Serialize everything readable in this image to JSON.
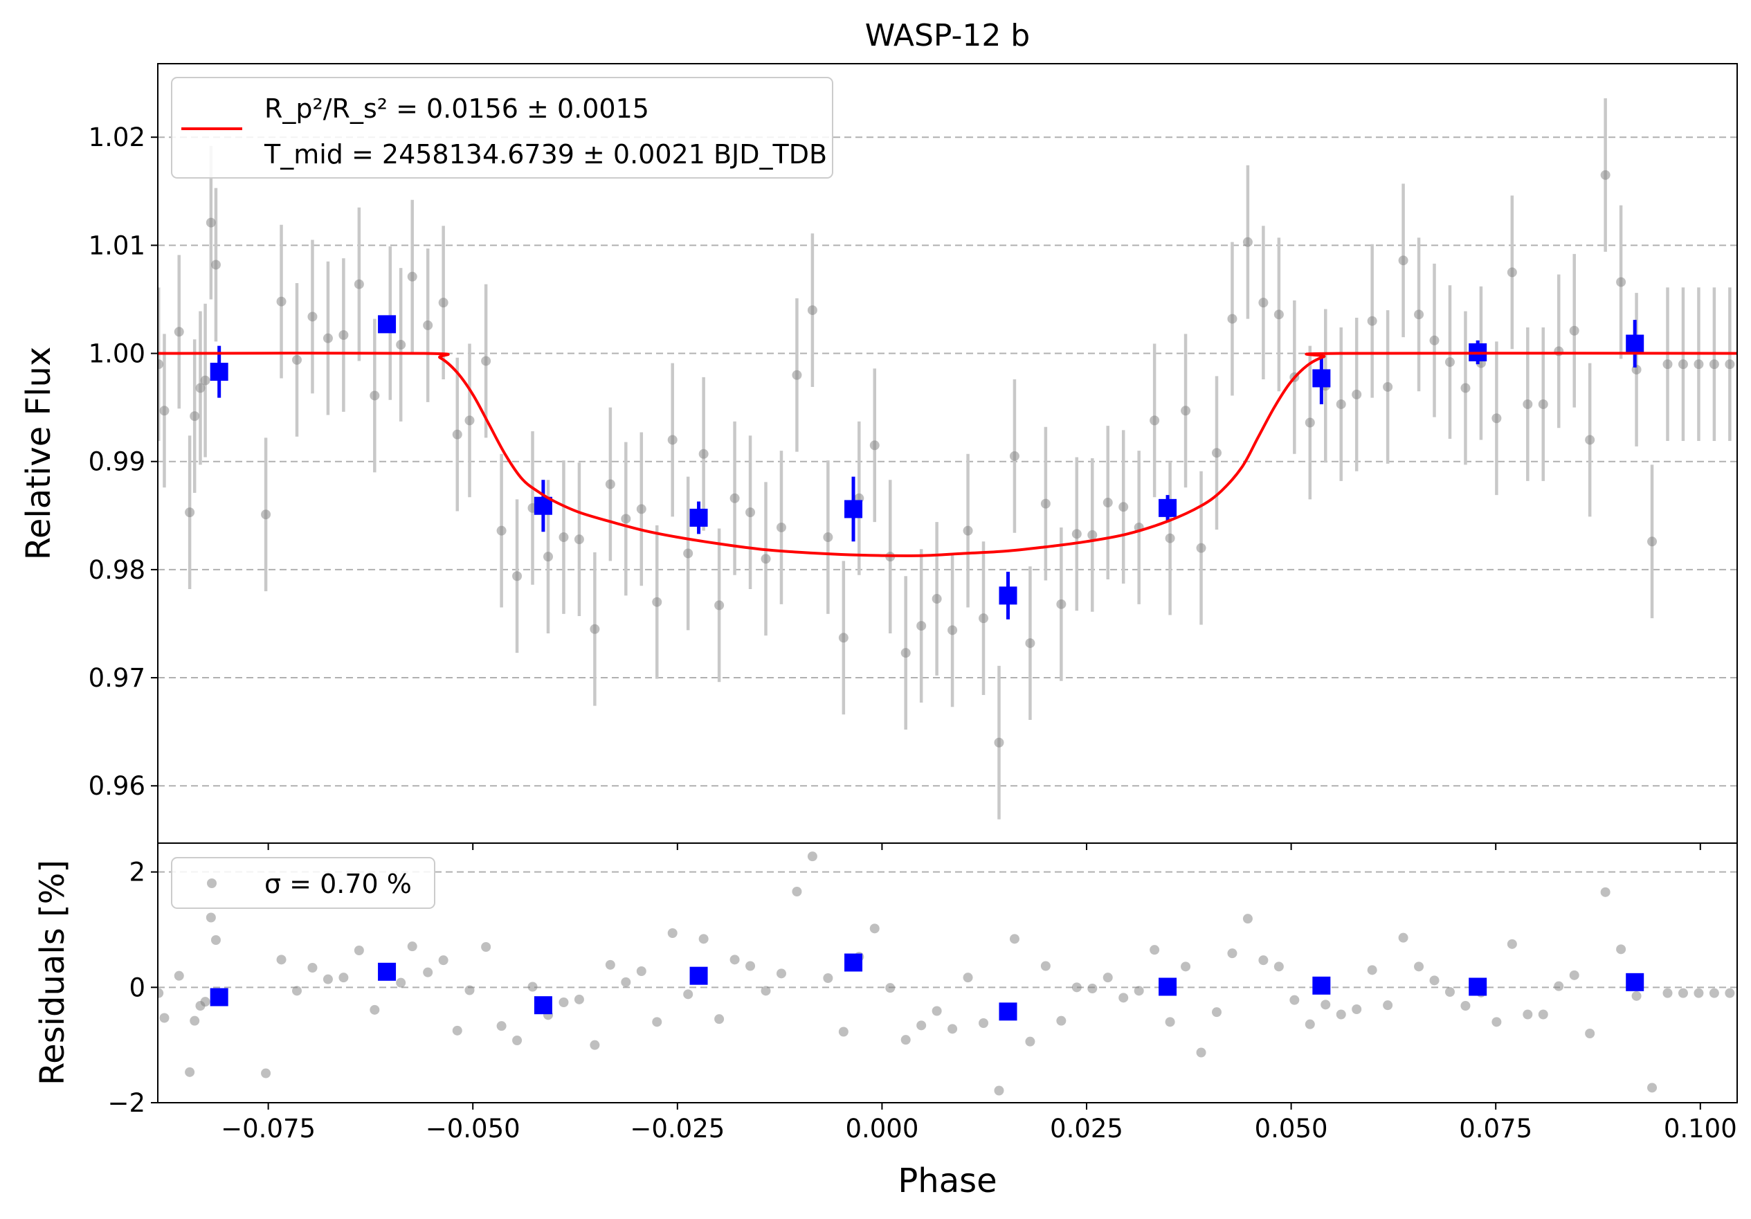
{
  "chart_data": [
    {
      "type": "scatter",
      "title": "WASP-12 b",
      "xlabel": "",
      "ylabel": "Relative Flux",
      "xlim": [
        -0.0885,
        0.1045
      ],
      "ylim": [
        0.9547,
        1.0268
      ],
      "yticks": [
        0.96,
        0.97,
        0.98,
        0.99,
        1.0,
        1.01,
        1.02
      ],
      "ytick_labels": [
        "0.96",
        "0.97",
        "0.98",
        "0.99",
        "1.00",
        "1.01",
        "1.02"
      ],
      "grid": "y-dashed",
      "legend": {
        "placement": "top-left",
        "line1": "R_p²/R_s² = 0.0156 ± 0.0015",
        "line2": "T_mid = 2458134.6739 ± 0.0021 BJD_TDB"
      },
      "colors": {
        "raw": "#808080",
        "binned": "#0000ff",
        "model": "#ff0000",
        "errorbar": "#c8c8c8"
      },
      "series": [
        {
          "kind": "raw",
          "x": [
            -0.0884,
            -0.0877,
            -0.0859,
            -0.0846,
            -0.084,
            -0.0833,
            -0.0827,
            -0.082,
            -0.0814,
            -0.0753,
            -0.0734,
            -0.0715,
            -0.0696,
            -0.0677,
            -0.0658,
            -0.0639,
            -0.062,
            -0.0601,
            -0.0588,
            -0.0574,
            -0.0555,
            -0.0536,
            -0.0519,
            -0.0504,
            -0.0484,
            -0.0465,
            -0.0446,
            -0.0427,
            -0.0408,
            -0.0389,
            -0.037,
            -0.0351,
            -0.0332,
            -0.0313,
            -0.0294,
            -0.0275,
            -0.0256,
            -0.0237,
            -0.0218,
            -0.0199,
            -0.018,
            -0.0161,
            -0.0142,
            -0.0123,
            -0.0104,
            -0.0085,
            -0.0066,
            -0.0047,
            -0.0028,
            -0.0009,
            0.001,
            0.0029,
            0.0048,
            0.0067,
            0.0086,
            0.0105,
            0.0124,
            0.0143,
            0.0162,
            0.0181,
            0.02,
            0.0219,
            0.0238,
            0.0257,
            0.0276,
            0.0295,
            0.0314,
            0.0333,
            0.0352,
            0.0371,
            0.039,
            0.0409,
            0.0428,
            0.0447,
            0.0466,
            0.0485,
            0.0504,
            0.0523,
            0.0542,
            0.0561,
            0.058,
            0.0599,
            0.0618,
            0.0637,
            0.0656,
            0.0675,
            0.0694,
            0.0713,
            0.0732,
            0.0751,
            0.077,
            0.0789,
            0.0808,
            0.0827,
            0.0846,
            0.0865,
            0.0884,
            0.0903,
            0.0922,
            0.0941,
            0.096,
            0.0979,
            0.0998,
            0.1017,
            0.1036
          ],
          "y": [
            0.999,
            0.9947,
            1.002,
            0.9853,
            0.9942,
            0.9968,
            0.9975,
            1.0121,
            1.0082,
            0.9851,
            1.0048,
            0.9994,
            1.0034,
            1.0014,
            1.0017,
            1.0064,
            0.9961,
            1.0028,
            1.0008,
            1.0071,
            1.0026,
            1.0047,
            0.9925,
            0.9938,
            0.9993,
            0.9836,
            0.9794,
            0.9857,
            0.9812,
            0.983,
            0.9828,
            0.9745,
            0.9879,
            0.9847,
            0.9856,
            0.977,
            0.992,
            0.9815,
            0.9907,
            0.9767,
            0.9866,
            0.9853,
            0.981,
            0.9839,
            0.998,
            1.004,
            0.983,
            0.9737,
            0.9866,
            0.9915,
            0.9812,
            0.9723,
            0.9748,
            0.9773,
            0.9744,
            0.9836,
            0.9755,
            0.964,
            0.9905,
            0.9732,
            0.9861,
            0.9768,
            0.9833,
            0.9832,
            0.9862,
            0.9858,
            0.9839,
            0.9938,
            0.9829,
            0.9947,
            0.982,
            0.9908,
            1.0032,
            1.0103,
            1.0047,
            1.0036,
            0.9978,
            0.9936,
            0.997,
            0.9953,
            0.9962,
            1.003,
            0.9969,
            1.0086,
            1.0036,
            1.0012,
            0.9992,
            0.9968,
            0.9991,
            0.994,
            1.0075,
            0.9953,
            0.9953,
            1.0002,
            1.0021,
            0.992,
            1.0165,
            1.0066,
            0.9985,
            0.9826,
            0.999,
            0.999,
            0.999,
            0.999,
            0.999
          ],
          "yerr": 0.0071
        },
        {
          "kind": "binned",
          "x": [
            -0.081,
            -0.0605,
            -0.0414,
            -0.0224,
            -0.0035,
            0.0154,
            0.0349,
            0.0537,
            0.0728,
            0.092
          ],
          "y": [
            0.9983,
            1.0027,
            0.9859,
            0.9848,
            0.9856,
            0.9776,
            0.9857,
            0.9977,
            1.0001,
            1.0009
          ],
          "yerr": [
            0.0024,
            0.0008,
            0.0024,
            0.0015,
            0.003,
            0.0022,
            0.0012,
            0.0024,
            0.0011,
            0.0022
          ]
        },
        {
          "kind": "model",
          "name": "R_p²/R_s² = 0.0156 ± 0.0015\nT_mid = 2458134.6739 ± 0.0021 BJD_TDB",
          "x": [
            -0.0885,
            -0.056,
            -0.054,
            -0.052,
            -0.05,
            -0.048,
            -0.046,
            -0.044,
            -0.042,
            -0.04,
            -0.037,
            -0.033,
            -0.029,
            -0.025,
            -0.02,
            -0.015,
            -0.01,
            -0.005,
            0.0,
            0.005,
            0.01,
            0.015,
            0.02,
            0.025,
            0.03,
            0.035,
            0.039,
            0.0415,
            0.044,
            0.046,
            0.048,
            0.05,
            0.052,
            0.054,
            0.056,
            0.1045
          ],
          "y": [
            1.0,
            1.0,
            0.9996,
            0.9983,
            0.9962,
            0.9934,
            0.9906,
            0.9884,
            0.9872,
            0.9863,
            0.9853,
            0.9844,
            0.9836,
            0.983,
            0.9824,
            0.9819,
            0.9816,
            0.9814,
            0.9813,
            0.9813,
            0.9815,
            0.9817,
            0.9821,
            0.9826,
            0.9833,
            0.9845,
            0.9859,
            0.9873,
            0.9895,
            0.9923,
            0.9951,
            0.9974,
            0.9989,
            0.9997,
            1.0,
            1.0
          ]
        }
      ]
    },
    {
      "type": "scatter",
      "title": "",
      "xlabel": "Phase",
      "ylabel": "Residuals [%]",
      "xlim": [
        -0.0885,
        0.1045
      ],
      "ylim": [
        -2.0,
        2.5
      ],
      "xticks": [
        -0.075,
        -0.05,
        -0.025,
        0.0,
        0.025,
        0.05,
        0.075,
        0.1
      ],
      "xtick_labels": [
        "−0.075",
        "−0.050",
        "−0.025",
        "0.000",
        "0.025",
        "0.050",
        "0.075",
        "0.100"
      ],
      "yticks": [
        -2,
        0,
        2
      ],
      "ytick_labels": [
        "−2",
        "0",
        "2"
      ],
      "grid": "y-dashed",
      "legend": {
        "placement": "top-left",
        "label": "σ = 0.70 %"
      },
      "series": [
        {
          "kind": "raw",
          "x": [
            -0.0884,
            -0.0877,
            -0.0859,
            -0.0846,
            -0.084,
            -0.0833,
            -0.0827,
            -0.082,
            -0.0814,
            -0.0753,
            -0.0734,
            -0.0715,
            -0.0696,
            -0.0677,
            -0.0658,
            -0.0639,
            -0.062,
            -0.0601,
            -0.0588,
            -0.0574,
            -0.0555,
            -0.0536,
            -0.0519,
            -0.0504,
            -0.0484,
            -0.0465,
            -0.0446,
            -0.0427,
            -0.0408,
            -0.0389,
            -0.037,
            -0.0351,
            -0.0332,
            -0.0313,
            -0.0294,
            -0.0275,
            -0.0256,
            -0.0237,
            -0.0218,
            -0.0199,
            -0.018,
            -0.0161,
            -0.0142,
            -0.0123,
            -0.0104,
            -0.0085,
            -0.0066,
            -0.0047,
            -0.0028,
            -0.0009,
            0.001,
            0.0029,
            0.0048,
            0.0067,
            0.0086,
            0.0105,
            0.0124,
            0.0143,
            0.0162,
            0.0181,
            0.02,
            0.0219,
            0.0238,
            0.0257,
            0.0276,
            0.0295,
            0.0314,
            0.0333,
            0.0352,
            0.0371,
            0.039,
            0.0409,
            0.0428,
            0.0447,
            0.0466,
            0.0485,
            0.0504,
            0.0523,
            0.0542,
            0.0561,
            0.058,
            0.0599,
            0.0618,
            0.0637,
            0.0656,
            0.0675,
            0.0694,
            0.0713,
            0.0732,
            0.0751,
            0.077,
            0.0789,
            0.0808,
            0.0827,
            0.0846,
            0.0865,
            0.0884,
            0.0903,
            0.0922,
            0.0941,
            0.096,
            0.0979,
            0.0998,
            0.1017,
            0.1036
          ],
          "y": [
            -0.1,
            -0.53,
            0.2,
            -1.47,
            -0.58,
            -0.32,
            -0.25,
            1.21,
            0.82,
            -1.49,
            0.48,
            -0.06,
            0.34,
            0.14,
            0.17,
            0.64,
            -0.39,
            0.28,
            0.08,
            0.71,
            0.26,
            0.47,
            -0.75,
            -0.05,
            0.7,
            -0.67,
            -0.92,
            0.01,
            -0.48,
            -0.26,
            -0.21,
            -1.0,
            0.39,
            0.09,
            0.28,
            -0.6,
            0.94,
            -0.12,
            0.84,
            -0.55,
            0.48,
            0.37,
            -0.06,
            0.24,
            1.66,
            2.27,
            0.16,
            -0.77,
            0.53,
            1.02,
            -0.01,
            -0.91,
            -0.66,
            -0.41,
            -0.72,
            0.17,
            -0.62,
            -1.79,
            0.84,
            -0.94,
            0.37,
            -0.58,
            0.0,
            -0.02,
            0.17,
            -0.18,
            -0.06,
            0.65,
            -0.6,
            0.36,
            -1.13,
            -0.43,
            0.59,
            1.19,
            0.47,
            0.36,
            -0.22,
            -0.64,
            -0.3,
            -0.47,
            -0.38,
            0.3,
            -0.31,
            0.86,
            0.36,
            0.12,
            -0.08,
            -0.32,
            -0.09,
            -0.6,
            0.75,
            -0.47,
            -0.47,
            0.02,
            0.21,
            -0.8,
            1.65,
            0.66,
            -0.15,
            -1.74,
            -0.1,
            -0.1,
            -0.1,
            -0.1,
            -0.1
          ]
        },
        {
          "kind": "binned",
          "x": [
            -0.081,
            -0.0605,
            -0.0414,
            -0.0224,
            -0.0035,
            0.0154,
            0.0349,
            0.0537,
            0.0728,
            0.092
          ],
          "y": [
            -0.17,
            0.27,
            -0.31,
            0.2,
            0.43,
            -0.42,
            0.01,
            0.03,
            0.01,
            0.09
          ]
        }
      ]
    }
  ]
}
